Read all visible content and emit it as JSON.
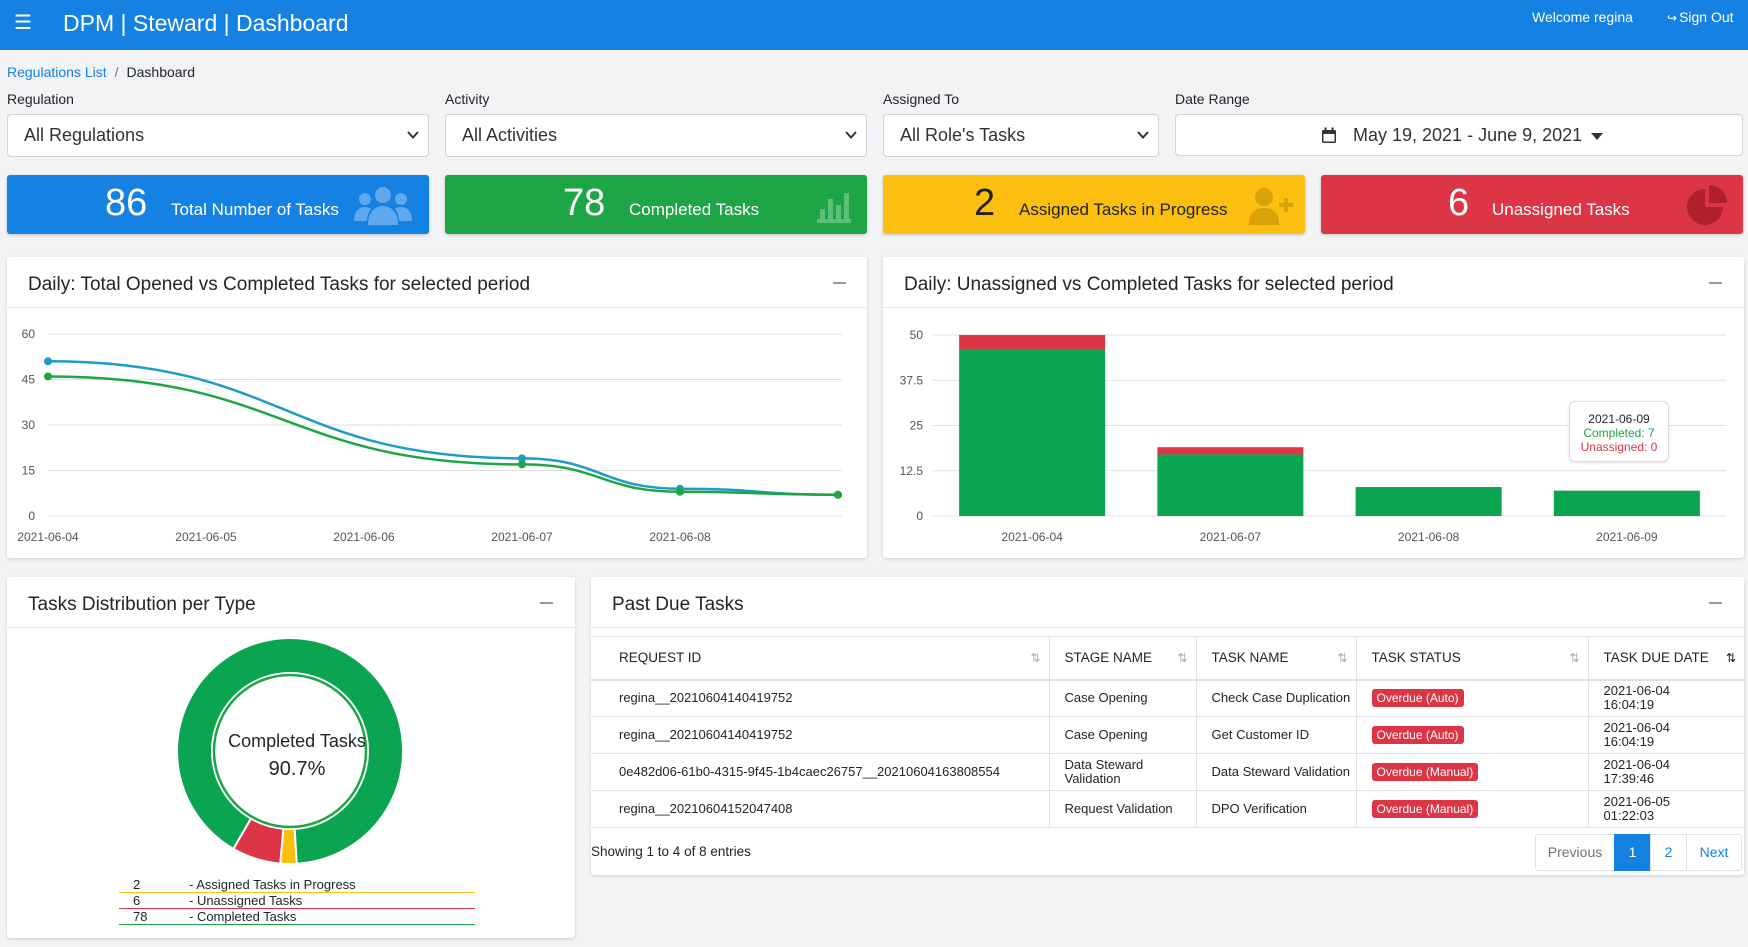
{
  "header": {
    "menu_icon": "hamburger-icon",
    "title": "DPM | Steward | Dashboard",
    "welcome": "Welcome regina",
    "sign_out": "Sign Out",
    "sign_out_icon": "sign-out-icon",
    "color": "#1582e3"
  },
  "breadcrumb": {
    "link": "Regulations List",
    "separator": "/",
    "current": "Dashboard"
  },
  "filters": {
    "regulation": {
      "label": "Regulation",
      "value": "All Regulations"
    },
    "activity": {
      "label": "Activity",
      "value": "All Activities"
    },
    "assigned_to": {
      "label": "Assigned To",
      "value": "All Role's Tasks"
    },
    "date_range": {
      "label": "Date Range",
      "value": "May 19, 2021 - June 9, 2021",
      "icon": "calendar-icon"
    }
  },
  "kpis": [
    {
      "value": "86",
      "label": "Total Number of Tasks",
      "color": "#1582e3",
      "icon": "users-icon"
    },
    {
      "value": "78",
      "label": "Completed Tasks",
      "color": "#1ea545",
      "icon": "bar-chart-icon"
    },
    {
      "value": "2",
      "label": "Assigned Tasks in Progress",
      "color": "#fdbf0f",
      "icon": "user-plus-icon"
    },
    {
      "value": "6",
      "label": "Unassigned Tasks",
      "color": "#dc3545",
      "icon": "pie-chart-icon"
    }
  ],
  "line_card": {
    "title": "Daily: Total Opened vs Completed Tasks for selected period",
    "min_icon": "minimize-icon"
  },
  "bar_card": {
    "title": "Daily: Unassigned vs Completed Tasks for selected period",
    "min_icon": "minimize-icon"
  },
  "dist_card": {
    "title": "Tasks Distribution per Type",
    "center_label": "Completed Tasks",
    "center_value": "90.7%",
    "min_icon": "minimize-icon"
  },
  "pastdue_card": {
    "title": "Past Due Tasks",
    "min_icon": "minimize-icon"
  },
  "chart_data": [
    {
      "type": "line",
      "x": [
        "2021-06-04",
        "2021-06-05",
        "2021-06-06",
        "2021-06-07",
        "2021-06-08"
      ],
      "x_ticks": [
        "2021-06-04",
        "2021-06-05",
        "2021-06-06",
        "2021-06-07",
        "2021-06-08"
      ],
      "series": [
        {
          "color": "#1f9bc7",
          "points": [
            [
              "2021-06-04",
              51
            ],
            [
              "2021-06-07",
              19
            ],
            [
              "2021-06-08",
              9
            ],
            [
              "2021-06-09",
              7
            ]
          ]
        },
        {
          "color": "#1ea545",
          "points": [
            [
              "2021-06-04",
              46
            ],
            [
              "2021-06-07",
              17
            ],
            [
              "2021-06-08",
              8
            ],
            [
              "2021-06-09",
              7
            ]
          ]
        }
      ],
      "ylim": [
        0,
        60
      ],
      "yticks": [
        "0",
        "15",
        "30",
        "45",
        "60"
      ],
      "grid": true
    },
    {
      "type": "bar",
      "stacked": true,
      "categories": [
        "2021-06-04",
        "2021-06-07",
        "2021-06-08",
        "2021-06-09"
      ],
      "series": [
        {
          "name": "Completed",
          "color": "#0ba552",
          "values": [
            46,
            17,
            8,
            7
          ]
        },
        {
          "name": "Unassigned",
          "color": "#dc3545",
          "values": [
            4,
            2,
            0,
            0
          ]
        }
      ],
      "ylim": [
        0,
        50
      ],
      "yticks": [
        "0",
        "12.5",
        "25",
        "37.5",
        "50"
      ],
      "grid": true,
      "tooltip": {
        "title": "2021-06-09",
        "completed": "Completed: 7",
        "unassigned": "Unassigned: 0"
      }
    },
    {
      "type": "pie",
      "donut": true,
      "slices": [
        {
          "label": "Completed Tasks",
          "value": 78,
          "color": "#0ba552"
        },
        {
          "label": "Assigned Tasks in Progress",
          "value": 2,
          "color": "#fdbf0f"
        },
        {
          "label": "Unassigned Tasks",
          "value": 6,
          "color": "#dc3545"
        }
      ],
      "legend": [
        {
          "value": "2",
          "label": "- Assigned Tasks in Progress",
          "color": "#fdbf0f"
        },
        {
          "value": "6",
          "label": "- Unassigned Tasks",
          "color": "#dc3545"
        },
        {
          "value": "78",
          "label": "- Completed Tasks",
          "color": "#1ea545"
        }
      ]
    }
  ],
  "table": {
    "columns": [
      "REQUEST ID",
      "STAGE NAME",
      "TASK NAME",
      "TASK STATUS",
      "TASK DUE DATE"
    ],
    "rows": [
      {
        "request_id": "regina__20210604140419752",
        "stage": "Case Opening",
        "task": "Check Case Duplication",
        "status": "Overdue (Auto)",
        "due1": "2021-06-04",
        "due2": "16:04:19"
      },
      {
        "request_id": "regina__20210604140419752",
        "stage": "Case Opening",
        "task": "Get Customer ID",
        "status": "Overdue (Auto)",
        "due1": "2021-06-04",
        "due2": "16:04:19"
      },
      {
        "request_id": "0e482d06-61b0-4315-9f45-1b4caec26757__20210604163808554",
        "stage": "Data Steward Validation",
        "task": "Data Steward Validation",
        "status": "Overdue (Manual)",
        "due1": "2021-06-04",
        "due2": "17:39:46"
      },
      {
        "request_id": "regina__20210604152047408",
        "stage": "Request Validation",
        "task": "DPO Verification",
        "status": "Overdue (Manual)",
        "due1": "2021-06-05",
        "due2": "01:22:03"
      }
    ],
    "showing": "Showing 1 to 4 of 8 entries",
    "pagination": {
      "previous": "Previous",
      "pages": [
        "1",
        "2"
      ],
      "next": "Next",
      "active_page": "1"
    }
  }
}
